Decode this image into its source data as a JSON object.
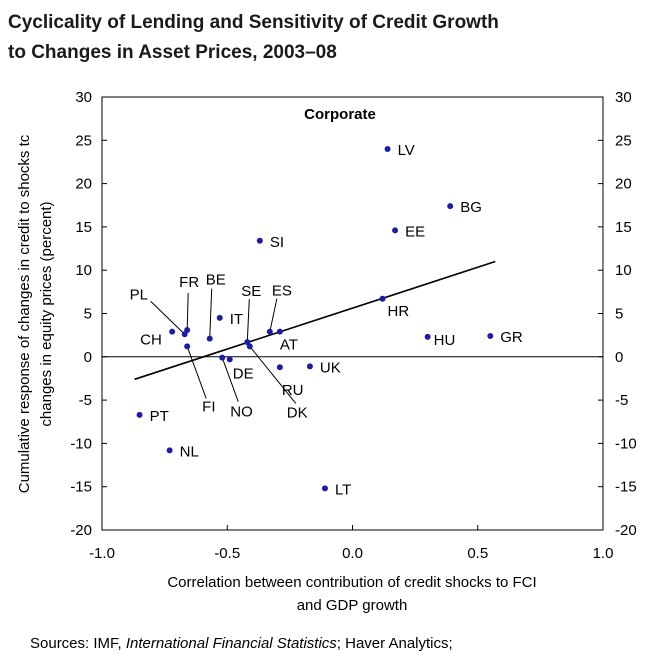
{
  "chart_data": {
    "type": "scatter",
    "title": [
      "Cyclicality of Lending and Sensitivity of Credit Growth",
      "to Changes in Asset Prices, 2003–08"
    ],
    "annotation": "Corporate",
    "xlabel": [
      "Correlation between contribution of credit shocks to FCI",
      "and GDP growth"
    ],
    "ylabel": [
      "Cumulative response of changes in credit to shocks tc",
      "changes in equity prices (percent)"
    ],
    "source": {
      "prefix": "Sources: IMF, ",
      "italic": "International Financial Statistics",
      "suffix": "; Haver Analytics;"
    },
    "xlim": [
      -1,
      1
    ],
    "xticks": [
      {
        "value": -1,
        "label": "-1.0"
      },
      {
        "value": -0.5,
        "label": "-0.5"
      },
      {
        "value": 0,
        "label": "0.0"
      },
      {
        "value": 0.5,
        "label": "0.5"
      },
      {
        "value": 1,
        "label": "1.0"
      }
    ],
    "ylim": [
      -20,
      30
    ],
    "yticks": [
      -20,
      -15,
      -10,
      -5,
      0,
      5,
      10,
      15,
      20,
      25,
      30
    ],
    "y2lim": [
      -20,
      30
    ],
    "y2ticks": [
      -20,
      -15,
      -10,
      -5,
      0,
      5,
      10,
      15,
      20,
      25,
      30
    ],
    "color": "#1c1ca8",
    "points": {
      "labels": [
        "LV",
        "BG",
        "EE",
        "SI",
        "HR",
        "HU",
        "GR",
        "IT",
        "BE",
        "PL",
        "FR",
        "CH",
        "FI",
        "SE",
        "ES",
        "AT",
        "NO",
        "DE",
        "DK",
        "RU",
        "UK",
        "PT",
        "NL",
        "LT"
      ],
      "x": [
        0.14,
        0.39,
        0.17,
        -0.37,
        0.12,
        0.3,
        0.55,
        -0.53,
        -0.57,
        -0.67,
        -0.66,
        -0.72,
        -0.66,
        -0.42,
        -0.33,
        -0.29,
        -0.52,
        -0.49,
        -0.41,
        -0.29,
        -0.17,
        -0.85,
        -0.73,
        -0.11
      ],
      "y": [
        24.0,
        17.4,
        14.6,
        13.4,
        6.7,
        2.3,
        2.4,
        4.5,
        2.1,
        2.6,
        3.1,
        2.9,
        1.2,
        1.7,
        2.9,
        2.9,
        -0.1,
        -0.3,
        1.2,
        -1.2,
        -1.1,
        -6.7,
        -10.8,
        -15.2
      ]
    },
    "trend_line": {
      "x": [
        -0.87,
        0.57
      ],
      "y": [
        -2.6,
        11.0
      ],
      "color": "#000000"
    }
  }
}
